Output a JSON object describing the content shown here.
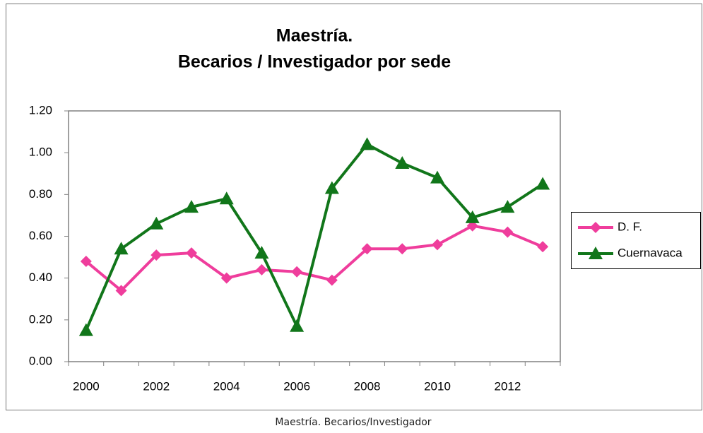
{
  "chart_data": {
    "type": "line",
    "title": [
      "Maestría.",
      "Becarios / Investigador por sede"
    ],
    "categories": [
      "2000",
      null,
      "2002",
      null,
      "2004",
      null,
      "2006",
      null,
      "2008",
      null,
      "2010",
      null,
      "2012",
      null
    ],
    "series": [
      {
        "name": "D. F.",
        "color": "#ef3d9c",
        "marker": "diamond",
        "values": [
          0.48,
          0.34,
          0.51,
          0.52,
          0.4,
          0.44,
          0.43,
          0.39,
          0.54,
          0.54,
          0.56,
          0.65,
          0.62,
          0.55
        ]
      },
      {
        "name": "Cuernavaca",
        "color": "#11761a",
        "marker": "triangle",
        "values": [
          0.15,
          0.54,
          0.66,
          0.74,
          0.78,
          0.52,
          0.17,
          0.83,
          1.04,
          0.95,
          0.88,
          0.69,
          0.74,
          0.85
        ]
      }
    ],
    "ylim": [
      0,
      1.2
    ],
    "yticks": [
      {
        "value": 0,
        "label": "0.00"
      },
      {
        "value": 0.2,
        "label": "0.20"
      },
      {
        "value": 0.4,
        "label": "0.40"
      },
      {
        "value": 0.6,
        "label": "0.60"
      },
      {
        "value": 0.8,
        "label": "0.80"
      },
      {
        "value": 1.0,
        "label": "1.00"
      },
      {
        "value": 1.2,
        "label": "1.20"
      }
    ],
    "grid": false,
    "legend": "right"
  },
  "caption": "Maestría. Becarios/Investigador"
}
